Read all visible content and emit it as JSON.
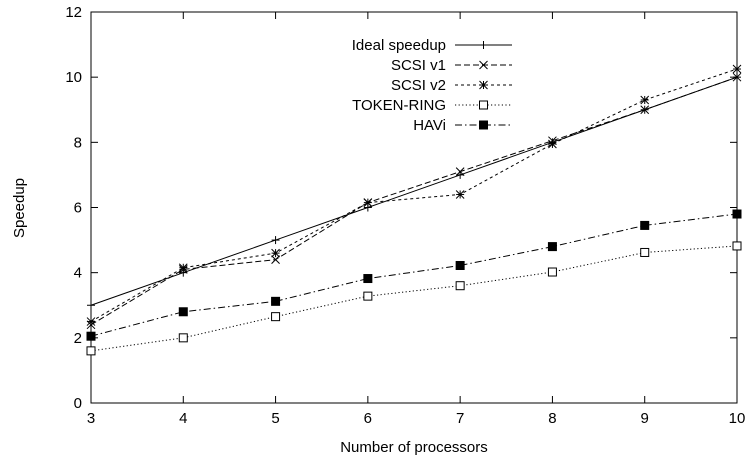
{
  "chart_data": {
    "type": "line",
    "title": "",
    "xlabel": "Number of processors",
    "ylabel": "Speedup",
    "xlim": [
      3,
      10
    ],
    "ylim": [
      0,
      12
    ],
    "x_ticks": [
      "3",
      "4",
      "5",
      "6",
      "7",
      "8",
      "9",
      "10"
    ],
    "y_ticks": [
      "0",
      "2",
      "4",
      "6",
      "8",
      "10",
      "12"
    ],
    "grid": false,
    "legend_position": "top-center",
    "x": [
      3,
      4,
      5,
      6,
      7,
      8,
      9,
      10
    ],
    "series": [
      {
        "name": "Ideal speedup",
        "marker": "plus",
        "dash": "solid",
        "values": [
          3,
          4,
          5,
          6,
          7,
          8,
          9,
          10
        ]
      },
      {
        "name": "SCSI v1",
        "marker": "cross",
        "dash": "dashed",
        "values": [
          2.4,
          4.1,
          4.4,
          6.15,
          7.1,
          8.05,
          9.0,
          10.0
        ]
      },
      {
        "name": "SCSI v2",
        "marker": "star",
        "dash": "dashed-fine",
        "values": [
          2.5,
          4.15,
          4.6,
          6.15,
          6.4,
          7.95,
          9.3,
          10.25
        ]
      },
      {
        "name": "TOKEN-RING",
        "marker": "open-square",
        "dash": "dotted",
        "values": [
          1.6,
          2.0,
          2.65,
          3.28,
          3.6,
          4.02,
          4.62,
          4.82
        ]
      },
      {
        "name": "HAVi",
        "marker": "filled-square",
        "dash": "dash-dot",
        "values": [
          2.05,
          2.8,
          3.12,
          3.82,
          4.22,
          4.8,
          5.45,
          5.8
        ]
      }
    ]
  }
}
